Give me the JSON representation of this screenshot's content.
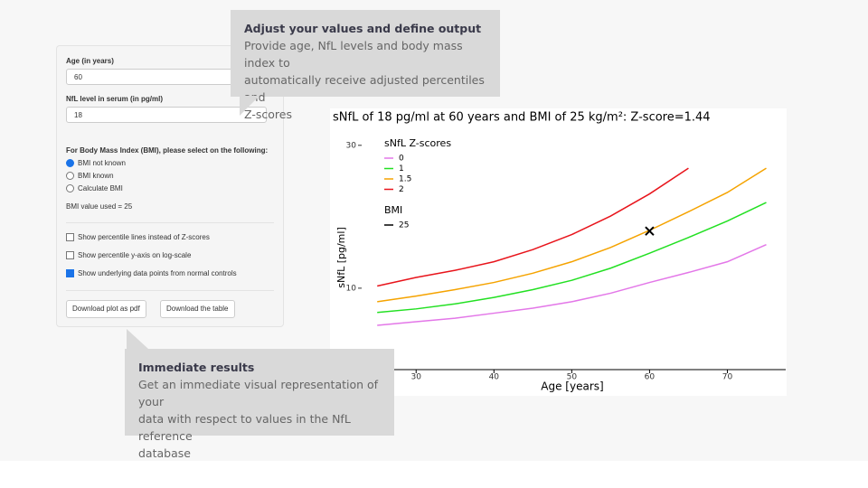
{
  "form": {
    "age_label": "Age (in years)",
    "age_value": "60",
    "nfl_label": "NfL level in serum (in pg/ml)",
    "nfl_value": "18",
    "bmi_prompt": "For Body Mass Index (BMI), please select on the following:",
    "bmi_options": [
      "BMI not known",
      "BMI known",
      "Calculate BMI"
    ],
    "bmi_used": "BMI value used = 25",
    "checkboxes": [
      "Show percentile lines instead of Z-scores",
      "Show percentile y-axis on log-scale",
      "Show underlying data points from normal controls"
    ],
    "buttons": [
      "Download plot as pdf",
      "Download the table"
    ]
  },
  "callouts": [
    {
      "title": "Adjust your values and define output",
      "lines": [
        "Provide age, NfL levels and body mass index to",
        "automatically receive adjusted percentiles and",
        "Z-scores"
      ]
    },
    {
      "title": "Immediate results",
      "lines": [
        "Get an immediate visual representation of your",
        "data with respect to values in the NfL reference",
        "database"
      ]
    }
  ],
  "chart_data": {
    "type": "line",
    "title": "sNfL of 18 pg/ml at 60 years and BMI of 25 kg/m²: Z-score=1.44",
    "xlabel": "Age [years]",
    "ylabel": "sNfL [pg/ml]",
    "x": [
      25,
      30,
      35,
      40,
      45,
      50,
      55,
      60,
      65,
      70,
      75
    ],
    "series": [
      {
        "name": "0",
        "color": "#e377e8",
        "values": [
          4.8,
          5.3,
          5.8,
          6.5,
          7.2,
          8.1,
          9.3,
          10.8,
          12.2,
          13.7,
          16.1
        ]
      },
      {
        "name": "1",
        "color": "#22e022",
        "values": [
          6.6,
          7.1,
          7.8,
          8.7,
          9.8,
          11.1,
          12.8,
          14.9,
          17.1,
          19.4,
          22.0
        ]
      },
      {
        "name": "1.5",
        "color": "#f5a300",
        "values": [
          8.1,
          8.9,
          9.8,
          10.8,
          12.1,
          13.7,
          15.7,
          18.1,
          20.7,
          23.4,
          26.8
        ]
      },
      {
        "name": "2",
        "color": "#e8141b",
        "values": [
          10.3,
          11.5,
          12.5,
          13.7,
          15.4,
          17.5,
          20.1,
          23.2,
          26.8,
          null,
          null
        ]
      }
    ],
    "legend_title": "sNfL Z-scores",
    "bmi_legend_title": "BMI",
    "bmi_legend_entry": "25",
    "point": {
      "x": 60,
      "y": 18
    },
    "xlim": [
      23,
      77.5
    ],
    "ylim": [
      -1.4,
      32
    ],
    "xticks": [
      30,
      40,
      50,
      60,
      70
    ],
    "yticks": [
      10,
      30
    ]
  }
}
